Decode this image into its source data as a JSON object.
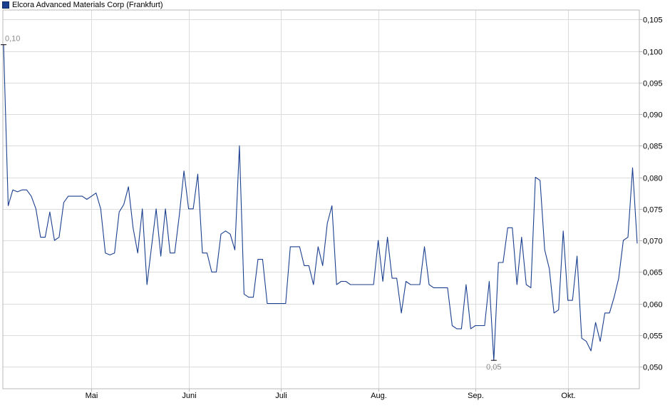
{
  "chart_data": {
    "type": "line",
    "title": "Elcora Advanced Materials Corp (Frankfurt)",
    "legend": [
      {
        "name": "Elcora Advanced Materials Corp (Frankfurt)",
        "color": "#1b3f8f"
      }
    ],
    "series_color": "#1b3f8f",
    "x_tick_labels": [
      "Mai",
      "Juni",
      "Juli",
      "Aug.",
      "Sep.",
      "Okt."
    ],
    "y_tick_labels": [
      "0,050",
      "0,055",
      "0,060",
      "0,065",
      "0,070",
      "0,075",
      "0,080",
      "0,085",
      "0,090",
      "0,095",
      "0,100",
      "0,105"
    ],
    "ylim": [
      0.0465,
      0.1065
    ],
    "grid": true,
    "legend_position": "top-left",
    "annotations": [
      {
        "text": "0,10",
        "type": "max"
      },
      {
        "text": "0,05",
        "type": "min"
      }
    ],
    "series": [
      {
        "values": [
          0.101,
          0.0755,
          0.078,
          0.0777,
          0.078,
          0.078,
          0.077,
          0.075,
          0.0705,
          0.0705,
          0.0745,
          0.07,
          0.0705,
          0.076,
          0.077,
          0.077,
          0.077,
          0.077,
          0.0765,
          0.077,
          0.0775,
          0.075,
          0.068,
          0.0677,
          0.068,
          0.0745,
          0.0757,
          0.0785,
          0.072,
          0.068,
          0.075,
          0.063,
          0.069,
          0.075,
          0.0675,
          0.075,
          0.068,
          0.068,
          0.074,
          0.081,
          0.075,
          0.075,
          0.0805,
          0.068,
          0.068,
          0.065,
          0.065,
          0.071,
          0.0715,
          0.071,
          0.0685,
          0.085,
          0.0615,
          0.061,
          0.061,
          0.067,
          0.067,
          0.06,
          0.06,
          0.06,
          0.06,
          0.06,
          0.069,
          0.069,
          0.069,
          0.066,
          0.066,
          0.063,
          0.069,
          0.066,
          0.0727,
          0.0755,
          0.063,
          0.0635,
          0.0635,
          0.063,
          0.063,
          0.063,
          0.063,
          0.063,
          0.063,
          0.07,
          0.0635,
          0.0705,
          0.064,
          0.064,
          0.0585,
          0.0635,
          0.063,
          0.063,
          0.063,
          0.069,
          0.063,
          0.0625,
          0.0625,
          0.0625,
          0.0625,
          0.0565,
          0.056,
          0.056,
          0.063,
          0.056,
          0.0565,
          0.0565,
          0.0565,
          0.0635,
          0.051,
          0.0665,
          0.0665,
          0.072,
          0.072,
          0.063,
          0.0705,
          0.063,
          0.0625,
          0.08,
          0.0795,
          0.0685,
          0.0655,
          0.0585,
          0.059,
          0.0715,
          0.0605,
          0.0605,
          0.0675,
          0.0545,
          0.054,
          0.0525,
          0.057,
          0.054,
          0.0585,
          0.0585,
          0.061,
          0.064,
          0.07,
          0.0705,
          0.0815,
          0.0695
        ]
      }
    ]
  }
}
